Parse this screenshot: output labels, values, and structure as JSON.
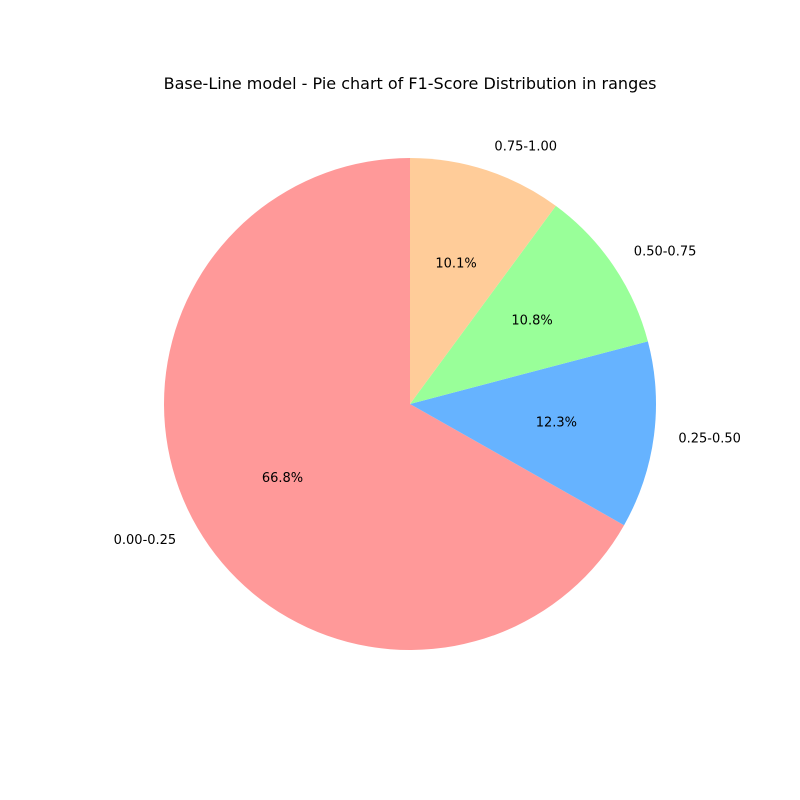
{
  "chart_data": {
    "type": "pie",
    "title": "Base-Line model - Pie chart of F1-Score Distribution in ranges",
    "categories": [
      "0.00-0.25",
      "0.25-0.50",
      "0.50-0.75",
      "0.75-1.00"
    ],
    "values": [
      66.8,
      12.3,
      10.8,
      10.1
    ],
    "percent_labels": [
      "66.8%",
      "12.3%",
      "10.8%",
      "10.1%"
    ],
    "colors": [
      "#ff9999",
      "#66b3ff",
      "#99ff99",
      "#ffcc99"
    ],
    "start_angle_degrees": 90,
    "direction": "counterclockwise",
    "legend": "none"
  }
}
